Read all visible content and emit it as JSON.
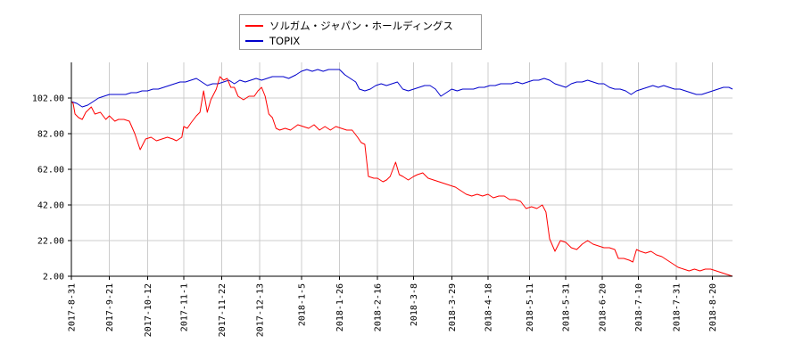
{
  "chart_data": {
    "type": "line",
    "title": "",
    "xlabel": "",
    "ylabel": "",
    "ylim": [
      2,
      122
    ],
    "yticks": [
      "2.00",
      "22.00",
      "42.00",
      "62.00",
      "82.00",
      "102.00"
    ],
    "xticks": [
      "2017-8-31",
      "2017-9-21",
      "2017-10-12",
      "2017-11-1",
      "2017-11-22",
      "2017-12-13",
      "2018-1-5",
      "2018-1-26",
      "2018-2-16",
      "2018-3-8",
      "2018-3-29",
      "2018-4-18",
      "2018-5-11",
      "2018-5-31",
      "2018-6-20",
      "2018-7-10",
      "2018-7-31",
      "2018-8-20"
    ],
    "x_end": "2018-8-31",
    "grid": true,
    "legend_placement": "top-center",
    "series": [
      {
        "name": "ソルガム・ジャパン・ホールディングス",
        "color": "#ff0000",
        "points": [
          [
            "2017-8-31",
            100
          ],
          [
            "2017-9-1",
            99
          ],
          [
            "2017-9-2",
            93
          ],
          [
            "2017-9-4",
            91
          ],
          [
            "2017-9-6",
            90
          ],
          [
            "2017-9-8",
            94
          ],
          [
            "2017-9-11",
            97
          ],
          [
            "2017-9-13",
            93
          ],
          [
            "2017-9-16",
            94
          ],
          [
            "2017-9-19",
            90
          ],
          [
            "2017-9-21",
            92
          ],
          [
            "2017-9-24",
            89
          ],
          [
            "2017-9-26",
            90
          ],
          [
            "2017-9-29",
            90
          ],
          [
            "2017-10-2",
            89
          ],
          [
            "2017-10-5",
            82
          ],
          [
            "2017-10-8",
            73
          ],
          [
            "2017-10-11",
            79
          ],
          [
            "2017-10-14",
            80
          ],
          [
            "2017-10-17",
            78
          ],
          [
            "2017-10-20",
            79
          ],
          [
            "2017-10-23",
            80
          ],
          [
            "2017-10-26",
            79
          ],
          [
            "2017-10-28",
            78
          ],
          [
            "2017-10-31",
            80
          ],
          [
            "2017-11-1",
            86
          ],
          [
            "2017-11-3",
            85
          ],
          [
            "2017-11-5",
            88
          ],
          [
            "2017-11-8",
            92
          ],
          [
            "2017-11-10",
            94
          ],
          [
            "2017-11-12",
            106
          ],
          [
            "2017-11-14",
            94
          ],
          [
            "2017-11-16",
            101
          ],
          [
            "2017-11-19",
            107
          ],
          [
            "2017-11-21",
            114
          ],
          [
            "2017-11-23",
            112
          ],
          [
            "2017-11-25",
            113
          ],
          [
            "2017-11-27",
            108
          ],
          [
            "2017-11-29",
            108
          ],
          [
            "2017-12-1",
            103
          ],
          [
            "2017-12-4",
            101
          ],
          [
            "2017-12-7",
            103
          ],
          [
            "2017-12-10",
            103
          ],
          [
            "2017-12-12",
            106
          ],
          [
            "2017-12-14",
            108
          ],
          [
            "2017-12-16",
            103
          ],
          [
            "2017-12-18",
            93
          ],
          [
            "2017-12-20",
            91
          ],
          [
            "2017-12-22",
            85
          ],
          [
            "2017-12-24",
            84
          ],
          [
            "2017-12-27",
            85
          ],
          [
            "2017-12-30",
            84
          ],
          [
            "2018-1-3",
            87
          ],
          [
            "2018-1-6",
            86
          ],
          [
            "2018-1-9",
            85
          ],
          [
            "2018-1-12",
            87
          ],
          [
            "2018-1-15",
            84
          ],
          [
            "2018-1-18",
            86
          ],
          [
            "2018-1-21",
            84
          ],
          [
            "2018-1-24",
            86
          ],
          [
            "2018-1-27",
            85
          ],
          [
            "2018-1-30",
            84
          ],
          [
            "2018-2-2",
            84
          ],
          [
            "2018-2-5",
            80
          ],
          [
            "2018-2-7",
            77
          ],
          [
            "2018-2-9",
            76
          ],
          [
            "2018-2-11",
            58
          ],
          [
            "2018-2-14",
            57
          ],
          [
            "2018-2-16",
            57
          ],
          [
            "2018-2-19",
            55
          ],
          [
            "2018-2-21",
            56
          ],
          [
            "2018-2-23",
            58
          ],
          [
            "2018-2-26",
            66
          ],
          [
            "2018-2-28",
            59
          ],
          [
            "2018-3-2",
            58
          ],
          [
            "2018-3-5",
            56
          ],
          [
            "2018-3-8",
            58
          ],
          [
            "2018-3-10",
            59
          ],
          [
            "2018-3-13",
            60
          ],
          [
            "2018-3-16",
            57
          ],
          [
            "2018-3-19",
            56
          ],
          [
            "2018-3-22",
            55
          ],
          [
            "2018-3-25",
            54
          ],
          [
            "2018-3-28",
            53
          ],
          [
            "2018-3-31",
            52
          ],
          [
            "2018-4-3",
            50
          ],
          [
            "2018-4-6",
            48
          ],
          [
            "2018-4-9",
            47
          ],
          [
            "2018-4-12",
            48
          ],
          [
            "2018-4-15",
            47
          ],
          [
            "2018-4-18",
            48
          ],
          [
            "2018-4-21",
            46
          ],
          [
            "2018-4-24",
            47
          ],
          [
            "2018-4-27",
            47
          ],
          [
            "2018-4-30",
            45
          ],
          [
            "2018-5-3",
            45
          ],
          [
            "2018-5-6",
            44
          ],
          [
            "2018-5-9",
            40
          ],
          [
            "2018-5-12",
            41
          ],
          [
            "2018-5-15",
            40
          ],
          [
            "2018-5-18",
            42
          ],
          [
            "2018-5-20",
            38
          ],
          [
            "2018-5-22",
            23
          ],
          [
            "2018-5-25",
            16
          ],
          [
            "2018-5-28",
            22
          ],
          [
            "2018-5-31",
            21
          ],
          [
            "2018-6-3",
            18
          ],
          [
            "2018-6-6",
            17
          ],
          [
            "2018-6-9",
            20
          ],
          [
            "2018-6-12",
            22
          ],
          [
            "2018-6-15",
            20
          ],
          [
            "2018-6-18",
            19
          ],
          [
            "2018-6-21",
            18
          ],
          [
            "2018-6-24",
            18
          ],
          [
            "2018-6-27",
            17
          ],
          [
            "2018-6-29",
            12
          ],
          [
            "2018-7-2",
            12
          ],
          [
            "2018-7-5",
            11
          ],
          [
            "2018-7-7",
            10
          ],
          [
            "2018-7-9",
            17
          ],
          [
            "2018-7-11",
            16
          ],
          [
            "2018-7-14",
            15
          ],
          [
            "2018-7-17",
            16
          ],
          [
            "2018-7-20",
            14
          ],
          [
            "2018-7-23",
            13
          ],
          [
            "2018-7-26",
            11
          ],
          [
            "2018-7-29",
            9
          ],
          [
            "2018-8-1",
            7
          ],
          [
            "2018-8-4",
            6
          ],
          [
            "2018-8-7",
            5
          ],
          [
            "2018-8-10",
            6
          ],
          [
            "2018-8-13",
            5
          ],
          [
            "2018-8-16",
            6
          ],
          [
            "2018-8-19",
            6
          ],
          [
            "2018-8-22",
            5
          ],
          [
            "2018-8-25",
            4
          ],
          [
            "2018-8-28",
            3
          ],
          [
            "2018-8-31",
            2
          ]
        ]
      },
      {
        "name": "TOPIX",
        "color": "#0000cc",
        "points": [
          [
            "2017-8-31",
            100
          ],
          [
            "2017-9-3",
            99
          ],
          [
            "2017-9-6",
            97
          ],
          [
            "2017-9-9",
            98
          ],
          [
            "2017-9-12",
            100
          ],
          [
            "2017-9-15",
            102
          ],
          [
            "2017-9-18",
            103
          ],
          [
            "2017-9-21",
            104
          ],
          [
            "2017-9-24",
            104
          ],
          [
            "2017-9-27",
            104
          ],
          [
            "2017-9-30",
            104
          ],
          [
            "2017-10-3",
            105
          ],
          [
            "2017-10-6",
            105
          ],
          [
            "2017-10-9",
            106
          ],
          [
            "2017-10-12",
            106
          ],
          [
            "2017-10-15",
            107
          ],
          [
            "2017-10-18",
            107
          ],
          [
            "2017-10-21",
            108
          ],
          [
            "2017-10-24",
            109
          ],
          [
            "2017-10-27",
            110
          ],
          [
            "2017-10-30",
            111
          ],
          [
            "2017-11-2",
            111
          ],
          [
            "2017-11-5",
            112
          ],
          [
            "2017-11-8",
            113
          ],
          [
            "2017-11-11",
            111
          ],
          [
            "2017-11-14",
            109
          ],
          [
            "2017-11-17",
            110
          ],
          [
            "2017-11-20",
            110
          ],
          [
            "2017-11-23",
            111
          ],
          [
            "2017-11-26",
            112
          ],
          [
            "2017-11-29",
            110
          ],
          [
            "2017-12-2",
            112
          ],
          [
            "2017-12-5",
            111
          ],
          [
            "2017-12-8",
            112
          ],
          [
            "2017-12-11",
            113
          ],
          [
            "2017-12-14",
            112
          ],
          [
            "2017-12-17",
            113
          ],
          [
            "2017-12-20",
            114
          ],
          [
            "2017-12-23",
            114
          ],
          [
            "2017-12-26",
            114
          ],
          [
            "2017-12-29",
            113
          ],
          [
            "2018-1-2",
            115
          ],
          [
            "2018-1-5",
            117
          ],
          [
            "2018-1-8",
            118
          ],
          [
            "2018-1-11",
            117
          ],
          [
            "2018-1-14",
            118
          ],
          [
            "2018-1-17",
            117
          ],
          [
            "2018-1-20",
            118
          ],
          [
            "2018-1-23",
            118
          ],
          [
            "2018-1-26",
            118
          ],
          [
            "2018-1-29",
            115
          ],
          [
            "2018-2-1",
            113
          ],
          [
            "2018-2-4",
            111
          ],
          [
            "2018-2-6",
            107
          ],
          [
            "2018-2-9",
            106
          ],
          [
            "2018-2-12",
            107
          ],
          [
            "2018-2-15",
            109
          ],
          [
            "2018-2-18",
            110
          ],
          [
            "2018-2-21",
            109
          ],
          [
            "2018-2-24",
            110
          ],
          [
            "2018-2-27",
            111
          ],
          [
            "2018-3-2",
            107
          ],
          [
            "2018-3-5",
            106
          ],
          [
            "2018-3-8",
            107
          ],
          [
            "2018-3-11",
            108
          ],
          [
            "2018-3-14",
            109
          ],
          [
            "2018-3-17",
            109
          ],
          [
            "2018-3-20",
            107
          ],
          [
            "2018-3-23",
            103
          ],
          [
            "2018-3-26",
            105
          ],
          [
            "2018-3-29",
            107
          ],
          [
            "2018-4-1",
            106
          ],
          [
            "2018-4-4",
            107
          ],
          [
            "2018-4-7",
            107
          ],
          [
            "2018-4-10",
            107
          ],
          [
            "2018-4-13",
            108
          ],
          [
            "2018-4-16",
            108
          ],
          [
            "2018-4-19",
            109
          ],
          [
            "2018-4-22",
            109
          ],
          [
            "2018-4-25",
            110
          ],
          [
            "2018-4-28",
            110
          ],
          [
            "2018-5-1",
            110
          ],
          [
            "2018-5-4",
            111
          ],
          [
            "2018-5-7",
            110
          ],
          [
            "2018-5-10",
            111
          ],
          [
            "2018-5-13",
            112
          ],
          [
            "2018-5-16",
            112
          ],
          [
            "2018-5-19",
            113
          ],
          [
            "2018-5-22",
            112
          ],
          [
            "2018-5-25",
            110
          ],
          [
            "2018-5-28",
            109
          ],
          [
            "2018-5-31",
            108
          ],
          [
            "2018-6-3",
            110
          ],
          [
            "2018-6-6",
            111
          ],
          [
            "2018-6-9",
            111
          ],
          [
            "2018-6-12",
            112
          ],
          [
            "2018-6-15",
            111
          ],
          [
            "2018-6-18",
            110
          ],
          [
            "2018-6-21",
            110
          ],
          [
            "2018-6-24",
            108
          ],
          [
            "2018-6-27",
            107
          ],
          [
            "2018-6-30",
            107
          ],
          [
            "2018-7-3",
            106
          ],
          [
            "2018-7-6",
            104
          ],
          [
            "2018-7-9",
            106
          ],
          [
            "2018-7-12",
            107
          ],
          [
            "2018-7-15",
            108
          ],
          [
            "2018-7-18",
            109
          ],
          [
            "2018-7-21",
            108
          ],
          [
            "2018-7-24",
            109
          ],
          [
            "2018-7-27",
            108
          ],
          [
            "2018-7-30",
            107
          ],
          [
            "2018-8-2",
            107
          ],
          [
            "2018-8-5",
            106
          ],
          [
            "2018-8-8",
            105
          ],
          [
            "2018-8-11",
            104
          ],
          [
            "2018-8-14",
            104
          ],
          [
            "2018-8-17",
            105
          ],
          [
            "2018-8-20",
            106
          ],
          [
            "2018-8-23",
            107
          ],
          [
            "2018-8-26",
            108
          ],
          [
            "2018-8-29",
            108
          ],
          [
            "2018-8-31",
            107
          ]
        ]
      }
    ]
  }
}
